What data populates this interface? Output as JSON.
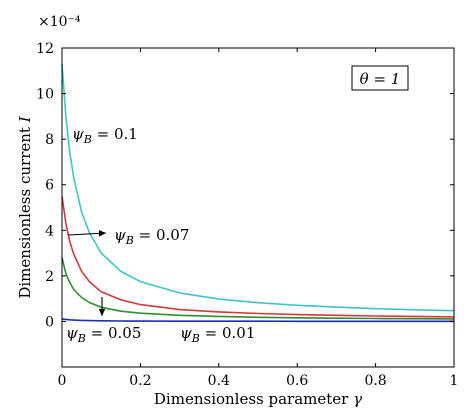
{
  "chart_data": {
    "type": "line",
    "title": "",
    "xlabel": "Dimensionless parameter γ",
    "ylabel": "Dimensionless current I",
    "y_multiplier": "×10⁻⁴",
    "xlim": [
      0,
      1
    ],
    "ylim": [
      -2,
      12
    ],
    "xticks": [
      "0",
      "0.2",
      "0.4",
      "0.6",
      "0.8",
      "1"
    ],
    "yticks": [
      "0",
      "2",
      "4",
      "6",
      "8",
      "10",
      "12"
    ],
    "grid": false,
    "legend": "none",
    "parameter_box": "θ = 1",
    "x": [
      0,
      0.01,
      0.02,
      0.03,
      0.05,
      0.07,
      0.1,
      0.15,
      0.2,
      0.3,
      0.4,
      0.5,
      0.6,
      0.7,
      0.8,
      0.9,
      1.0
    ],
    "series": [
      {
        "label": "ψB = 0.1",
        "symbol": "ψ",
        "subscript": "B",
        "value_text": " = 0.1",
        "color": "#3ec5c5",
        "values": [
          11.3,
          9.0,
          7.4,
          6.3,
          4.8,
          3.9,
          3.0,
          2.2,
          1.75,
          1.25,
          0.98,
          0.82,
          0.71,
          0.63,
          0.56,
          0.51,
          0.47
        ]
      },
      {
        "label": "ψB = 0.07",
        "symbol": "ψ",
        "subscript": "B",
        "value_text": " = 0.07",
        "color": "#d13b3b",
        "values": [
          5.5,
          4.3,
          3.5,
          2.95,
          2.2,
          1.75,
          1.3,
          0.95,
          0.74,
          0.52,
          0.42,
          0.35,
          0.3,
          0.27,
          0.24,
          0.22,
          0.2
        ]
      },
      {
        "label": "ψB = 0.05",
        "symbol": "ψ",
        "subscript": "B",
        "value_text": " = 0.05",
        "color": "#2f8f2f",
        "values": [
          2.8,
          2.1,
          1.7,
          1.4,
          1.05,
          0.83,
          0.62,
          0.45,
          0.36,
          0.27,
          0.22,
          0.18,
          0.16,
          0.14,
          0.13,
          0.12,
          0.11
        ]
      },
      {
        "label": "ψB = 0.01",
        "symbol": "ψ",
        "subscript": "B",
        "value_text": " = 0.01",
        "color": "#1f2fa8",
        "values": [
          0.11,
          0.09,
          0.07,
          0.06,
          0.045,
          0.037,
          0.028,
          0.02,
          0.016,
          0.012,
          0.01,
          0.008,
          0.007,
          0.006,
          0.006,
          0.005,
          0.005
        ]
      }
    ]
  }
}
